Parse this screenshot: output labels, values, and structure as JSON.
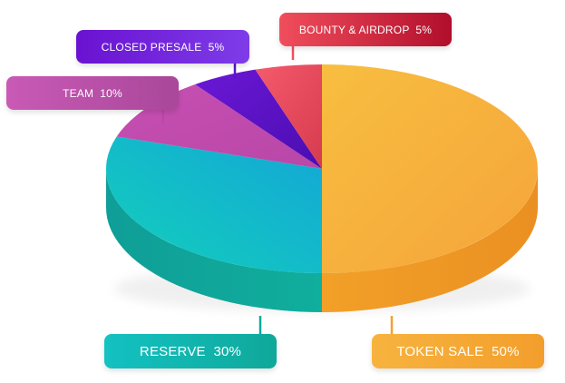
{
  "chart_data": {
    "type": "pie",
    "style": "3d",
    "slices": [
      {
        "label": "TOKEN SALE",
        "value": 50,
        "display": "TOKEN SALE  50%",
        "color_top": "#F6B93B",
        "color_side": "#EE9D25",
        "box_colors": [
          "#F7B33E",
          "#F39E2C"
        ]
      },
      {
        "label": "RESERVE",
        "value": 30,
        "display": "RESERVE  30%",
        "color_top": "#15C3C6",
        "color_side": "#0FA89D",
        "box_colors": [
          "#13C2C2",
          "#0FA89A"
        ]
      },
      {
        "label": "TEAM",
        "value": 10,
        "display": "TEAM  10%",
        "color_top": "#C94FB0",
        "color_side": "#A8388F",
        "box_colors": [
          "#C95AB6",
          "#A9479A"
        ]
      },
      {
        "label": "CLOSED PRESALE",
        "value": 5,
        "display": "CLOSED PRESALE  5%",
        "color_top": "#5B14C8",
        "color_side": "#430FA0",
        "box_colors": [
          "#6A12D1",
          "#7E3CE8"
        ]
      },
      {
        "label": "BOUNTY & AIRDROP",
        "value": 5,
        "display": "BOUNTY & AIRDROP  5%",
        "color_top": "#F05060",
        "color_side": "#C92E40",
        "box_colors": [
          "#F04E5C",
          "#B10E2C"
        ]
      }
    ]
  }
}
